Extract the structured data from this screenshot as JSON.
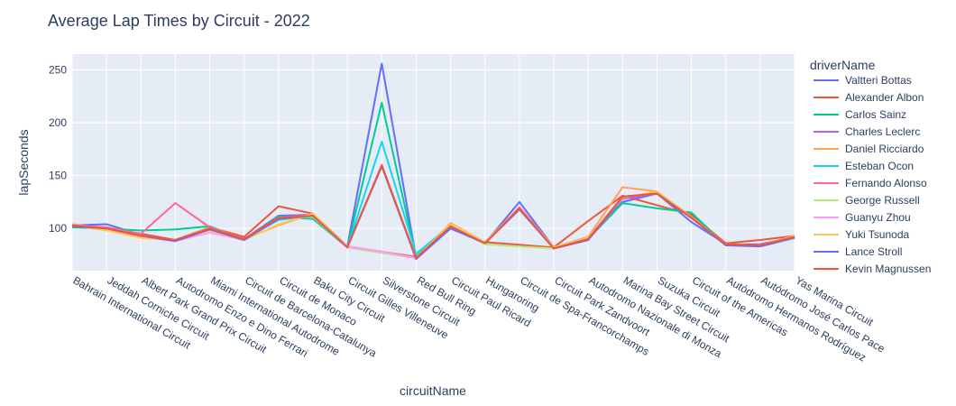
{
  "chart_data": {
    "type": "line",
    "title": "Average Lap Times by Circuit - 2022",
    "xlabel": "circuitName",
    "ylabel": "lapSeconds",
    "ylim": [
      60,
      265
    ],
    "yticks": [
      100,
      150,
      200,
      250
    ],
    "grid": true,
    "legend_title": "driverName",
    "legend_position": "right",
    "categories": [
      "Bahrain International Circuit",
      "Jeddah Corniche Circuit",
      "Albert Park Grand Prix Circuit",
      "Autodromo Enzo e Dino Ferrari",
      "Miami International Autodrome",
      "Circuit de Barcelona-Catalunya",
      "Circuit de Monaco",
      "Baku City Circuit",
      "Circuit Gilles Villeneuve",
      "Silverstone Circuit",
      "Red Bull Ring",
      "Circuit Paul Ricard",
      "Hungaroring",
      "Circuit de Spa-Francorchamps",
      "Circuit Park Zandvoort",
      "Autodromo Nazionale di Monza",
      "Marina Bay Street Circuit",
      "Suzuka Circuit",
      "Circuit of the Americas",
      "Autódromo Hermanos Rodríguez",
      "Autódromo José Carlos Pace",
      "Yas Marina Circuit"
    ],
    "series": [
      {
        "name": "Valtteri Bottas",
        "color": "#636efa",
        "values": [
          103,
          104,
          94,
          88,
          101,
          90,
          112,
          113,
          83,
          256,
          72,
          103,
          86,
          125,
          82,
          90,
          125,
          133,
          106,
          85,
          85,
          92
        ]
      },
      {
        "name": "Alexander Albon",
        "color": "#EF553B",
        "values": [
          103,
          100,
          95,
          89,
          101,
          92,
          121,
          114,
          83,
          null,
          73,
          104,
          87,
          null,
          82,
          107,
          131,
          null,
          113,
          86,
          89,
          93
        ]
      },
      {
        "name": "Carlos Sainz",
        "color": "#00cc96",
        "values": [
          101,
          100,
          98,
          99,
          102,
          89,
          111,
          109,
          82,
          219,
          73,
          102,
          86,
          119,
          81,
          90,
          124,
          119,
          115,
          84,
          84,
          91
        ]
      },
      {
        "name": "Charles Leclerc",
        "color": "#ab63fa",
        "values": [
          102,
          101,
          94,
          88,
          100,
          89,
          110,
          112,
          83,
          159,
          72,
          102,
          86,
          119,
          81,
          89,
          128,
          133,
          110,
          85,
          84,
          92
        ]
      },
      {
        "name": "Daniel Ricciardo",
        "color": "#FFA15A",
        "values": [
          104,
          100,
          92,
          89,
          101,
          90,
          103,
          114,
          82,
          159,
          72,
          105,
          87,
          120,
          82,
          92,
          139,
          135,
          111,
          85,
          84,
          93
        ]
      },
      {
        "name": "Esteban Ocon",
        "color": "#19d3f3",
        "values": [
          103,
          100,
          92,
          89,
          100,
          90,
          108,
          112,
          82,
          182,
          76,
          103,
          86,
          119,
          81,
          90,
          130,
          133,
          110,
          85,
          84,
          92
        ]
      },
      {
        "name": "Fernando Alonso",
        "color": "#FF6692",
        "values": [
          103,
          101,
          95,
          124,
          101,
          90,
          110,
          113,
          82,
          null,
          72,
          102,
          86,
          120,
          82,
          90,
          130,
          133,
          110,
          85,
          84,
          92
        ]
      },
      {
        "name": "George Russell",
        "color": "#B6E880",
        "values": [
          103,
          100,
          91,
          89,
          100,
          90,
          110,
          111,
          82,
          null,
          72,
          102,
          85,
          83,
          81,
          90,
          130,
          133,
          110,
          84,
          83,
          92
        ]
      },
      {
        "name": "Guanyu Zhou",
        "color": "#FF97FF",
        "values": [
          103,
          100,
          92,
          88,
          96,
          89,
          110,
          112,
          83,
          78,
          72,
          102,
          86,
          119,
          81,
          90,
          130,
          133,
          110,
          85,
          84,
          92
        ]
      },
      {
        "name": "Yuki Tsunoda",
        "color": "#FECB52",
        "values": [
          103,
          98,
          91,
          89,
          98,
          89,
          104,
          114,
          82,
          159,
          72,
          104,
          87,
          119,
          82,
          91,
          129,
          135,
          110,
          85,
          84,
          93
        ]
      },
      {
        "name": "Lance Stroll",
        "color": "#636efa",
        "values": [
          102,
          100,
          93,
          88,
          99,
          89,
          109,
          112,
          82,
          159,
          71,
          100,
          86,
          118,
          81,
          89,
          130,
          133,
          110,
          84,
          83,
          91
        ]
      },
      {
        "name": "Kevin Magnussen",
        "color": "#EF553B",
        "values": [
          103,
          100,
          93,
          89,
          100,
          90,
          110,
          112,
          82,
          160,
          72,
          102,
          86,
          119,
          81,
          90,
          130,
          133,
          110,
          85,
          84,
          92
        ]
      }
    ]
  }
}
